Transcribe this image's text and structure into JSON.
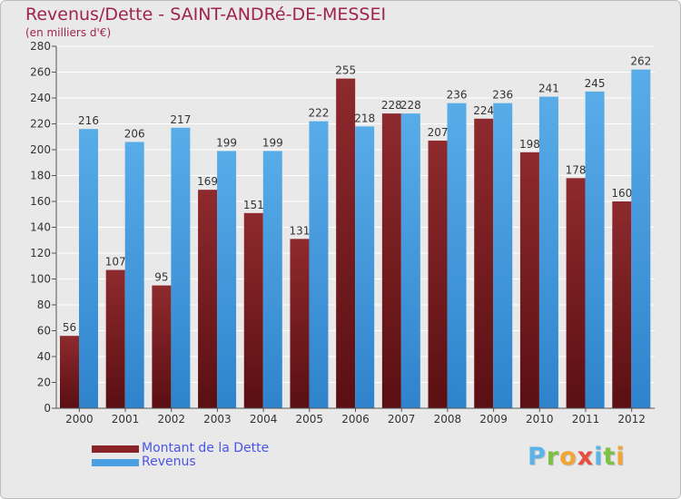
{
  "chart_data": {
    "type": "bar",
    "title": "Revenus/Dette - SAINT-ANDRé-DE-MESSEI",
    "subtitle": "(en milliers d'€)",
    "categories": [
      "2000",
      "2001",
      "2002",
      "2003",
      "2004",
      "2005",
      "2006",
      "2007",
      "2008",
      "2009",
      "2010",
      "2011",
      "2012"
    ],
    "series": [
      {
        "name": "Montant de la Dette",
        "color": "#8a2428",
        "values": [
          56,
          107,
          95,
          169,
          151,
          131,
          255,
          228,
          207,
          224,
          198,
          178,
          160
        ]
      },
      {
        "name": "Revenus",
        "color": "#4c9fe0",
        "values": [
          216,
          206,
          217,
          199,
          199,
          222,
          218,
          228,
          236,
          236,
          241,
          245,
          262
        ]
      }
    ],
    "ylim": [
      0,
      280
    ],
    "yticks": [
      "0",
      "20",
      "40",
      "60",
      "80",
      "100",
      "120",
      "140",
      "160",
      "180",
      "200",
      "220",
      "240",
      "260",
      "280"
    ],
    "grid": true,
    "legend_position": "bottom-left"
  },
  "logo": {
    "letters": [
      {
        "char": "P",
        "color": "#5ab4e8"
      },
      {
        "char": "r",
        "color": "#7dc142"
      },
      {
        "char": "o",
        "color": "#f2a533"
      },
      {
        "char": "x",
        "color": "#e84c3d"
      },
      {
        "char": "i",
        "color": "#5ab4e8"
      },
      {
        "char": "t",
        "color": "#7dc142"
      },
      {
        "char": "i",
        "color": "#f2a533"
      }
    ]
  }
}
